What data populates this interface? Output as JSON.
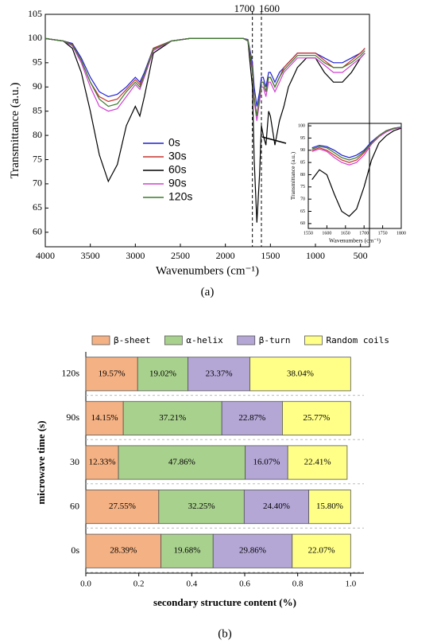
{
  "chart_data": [
    {
      "type": "line",
      "x_label": "Wavenumbers (cm⁻¹)",
      "y_label": "Transmittance (a.u.)",
      "caption": "(a)",
      "vlines": [
        1700,
        1600
      ],
      "xlim": [
        4000,
        400
      ],
      "xticks": [
        4000,
        3500,
        3000,
        2500,
        2000,
        1500,
        1000,
        500
      ],
      "ylim": [
        57,
        105
      ],
      "yticks": [
        60,
        65,
        70,
        75,
        80,
        85,
        90,
        95,
        100,
        105
      ],
      "x": [
        4000,
        3800,
        3700,
        3600,
        3500,
        3400,
        3300,
        3200,
        3100,
        3000,
        2950,
        2900,
        2800,
        2600,
        2400,
        2200,
        2000,
        1900,
        1800,
        1750,
        1700,
        1680,
        1650,
        1620,
        1600,
        1580,
        1550,
        1520,
        1500,
        1450,
        1400,
        1350,
        1300,
        1250,
        1200,
        1100,
        1000,
        900,
        800,
        700,
        600,
        500,
        450
      ],
      "series": [
        {
          "name": "0s",
          "color": "#1f1fd6",
          "values": [
            100,
            99.5,
            99,
            96,
            92,
            89,
            88,
            88.5,
            90,
            92,
            91,
            93,
            98,
            99.5,
            100,
            100,
            100,
            100,
            100,
            99.8,
            95,
            90,
            86,
            89,
            92,
            92,
            90,
            93,
            93,
            91,
            93,
            94,
            95,
            96,
            97,
            97,
            97,
            96,
            95,
            95,
            96,
            97,
            98
          ]
        },
        {
          "name": "30s",
          "color": "#c8322d",
          "values": [
            100,
            99.5,
            98.8,
            95.5,
            91,
            88,
            87,
            87.5,
            89.5,
            91.5,
            90.5,
            92.5,
            98,
            99.5,
            100,
            100,
            100,
            100,
            100,
            99.7,
            94,
            88,
            84,
            88,
            91,
            91,
            89,
            92,
            92,
            90,
            92,
            94,
            95,
            96,
            97,
            97,
            97,
            95.5,
            94,
            94,
            95.5,
            97,
            98
          ]
        },
        {
          "name": "60s",
          "color": "#000000",
          "values": [
            100,
            99.5,
            98,
            93,
            85,
            76,
            70.5,
            74,
            82,
            86,
            84,
            88,
            97,
            99.5,
            100,
            100,
            100,
            100,
            100,
            99.5,
            90,
            75,
            62,
            72,
            82,
            80,
            78,
            85,
            84,
            78,
            83,
            86,
            90,
            92,
            94,
            96,
            96,
            93,
            91,
            91,
            93,
            96,
            97
          ]
        },
        {
          "name": "90s",
          "color": "#d040d0",
          "values": [
            100,
            99.5,
            98.5,
            95,
            90,
            86,
            85,
            85.5,
            88,
            90.5,
            89.5,
            92,
            97.5,
            99.5,
            100,
            100,
            100,
            100,
            100,
            99.6,
            93,
            87,
            83,
            87,
            90,
            90,
            88,
            91,
            91,
            89,
            91,
            93,
            94,
            95,
            96,
            96,
            96,
            94.5,
            93,
            93,
            94.5,
            96,
            97
          ]
        },
        {
          "name": "120s",
          "color": "#3a7a2a",
          "values": [
            100,
            99.5,
            98.7,
            95.5,
            91,
            87.5,
            86,
            86.5,
            89,
            91,
            90,
            92.5,
            97.8,
            99.5,
            100,
            100,
            100,
            100,
            100,
            99.6,
            93.5,
            87.5,
            84,
            88,
            91,
            91,
            89,
            92,
            92,
            90,
            92,
            93.5,
            94.5,
            95.5,
            96.5,
            96.5,
            96.5,
            95,
            94,
            94,
            95,
            96.5,
            97.5
          ]
        }
      ]
    },
    {
      "type": "line",
      "x_label": "Wavenumbers (cm⁻¹)",
      "y_label": "Transmittance (a.u.)",
      "xlim": [
        1550,
        1800
      ],
      "xticks": [
        1550,
        1600,
        1650,
        1700,
        1750,
        1800
      ],
      "ylim": [
        58,
        101
      ],
      "yticks": [
        60,
        65,
        70,
        75,
        80,
        85,
        90,
        95,
        100
      ],
      "x": [
        1560,
        1580,
        1600,
        1620,
        1640,
        1660,
        1680,
        1700,
        1720,
        1740,
        1760,
        1780,
        1800
      ],
      "series": [
        {
          "color": "#1f1fd6",
          "values": [
            91,
            92,
            91.5,
            90,
            88,
            87,
            88,
            90,
            93.5,
            96,
            98,
            99,
            99.5
          ]
        },
        {
          "color": "#c8322d",
          "values": [
            90,
            91,
            90,
            88,
            86,
            85,
            86,
            89,
            93,
            96,
            98,
            99,
            99.3
          ]
        },
        {
          "color": "#000000",
          "values": [
            78,
            82,
            80,
            72,
            65,
            63,
            66,
            75,
            86,
            93,
            96,
            98,
            99
          ]
        },
        {
          "color": "#d040d0",
          "values": [
            89.5,
            90.5,
            89.5,
            87,
            85,
            84,
            85,
            88,
            92.5,
            95.5,
            97.5,
            98.8,
            99.2
          ]
        },
        {
          "color": "#3a7a2a",
          "values": [
            90.5,
            91.5,
            91,
            89,
            87,
            86,
            87,
            89.5,
            93,
            96,
            98,
            99,
            99.4
          ]
        }
      ]
    },
    {
      "type": "stacked_barh",
      "x_label": "secondary structure content (%)",
      "y_label": "microwave time (s)",
      "caption": "(b)",
      "categories": [
        "120s",
        "90s",
        "30",
        "60",
        "0s"
      ],
      "xlim": [
        0,
        1.05
      ],
      "xticks": [
        {
          "value": 0,
          "label": "0.0"
        },
        0.2,
        0.4,
        0.6,
        0.8,
        {
          "value": 1,
          "label": "1.0"
        }
      ],
      "series": [
        {
          "name": "β-sheet",
          "color": "#f4b183",
          "values": [
            0.1957,
            0.1415,
            0.1233,
            0.2755,
            0.2839
          ],
          "value_labels": [
            "19.57%",
            "14.15%",
            "12.33%",
            "27.55%",
            "28.39%"
          ]
        },
        {
          "name": "α-helix",
          "color": "#a9d18e",
          "values": [
            0.1902,
            0.3721,
            0.4786,
            0.3225,
            0.1968
          ],
          "value_labels": [
            "19.02%",
            "37.21%",
            "47.86%",
            "32.25%",
            "19.68%"
          ]
        },
        {
          "name": "β-turn",
          "color": "#b4a7d6",
          "values": [
            0.2337,
            0.2287,
            0.1607,
            0.244,
            0.2986
          ],
          "value_labels": [
            "23.37%",
            "22.87%",
            "16.07%",
            "24.40%",
            "29.86%"
          ]
        },
        {
          "name": "Random coils",
          "color": "#ffff88",
          "values": [
            0.3804,
            0.2577,
            0.2241,
            0.158,
            0.2207
          ],
          "value_labels": [
            "38.04%",
            "25.77%",
            "22.41%",
            "15.80%",
            "22.07%"
          ]
        }
      ]
    }
  ]
}
